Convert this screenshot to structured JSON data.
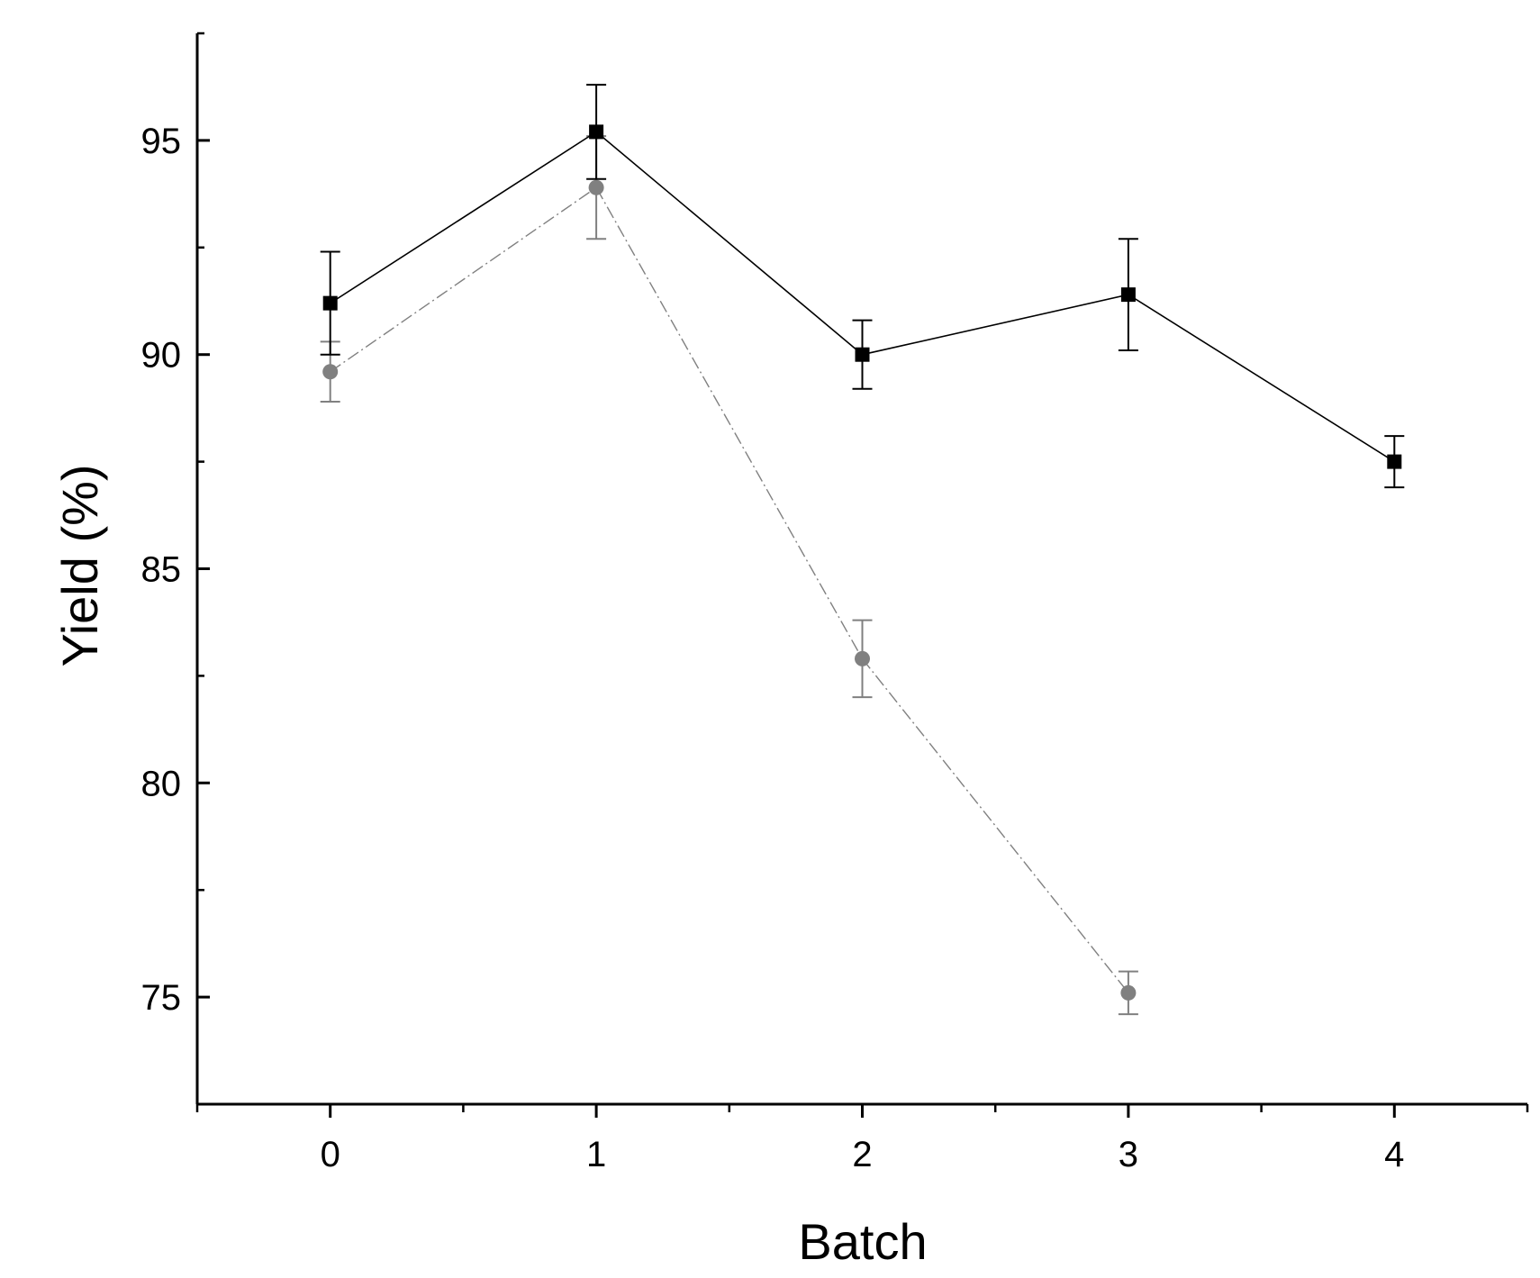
{
  "chart_data": {
    "type": "line",
    "title": "",
    "xlabel": "Batch",
    "ylabel": "Yield (%)",
    "xlim": [
      -0.5,
      4.5
    ],
    "ylim": [
      72.5,
      97.5
    ],
    "x_ticks": [
      0,
      1,
      2,
      3,
      4
    ],
    "x_tick_labels": [
      "0",
      "1",
      "2",
      "3",
      "4"
    ],
    "x_minor_ticks": [
      -0.5,
      0.5,
      1.5,
      2.5,
      3.5,
      4.5
    ],
    "y_ticks": [
      75,
      80,
      85,
      90,
      95
    ],
    "y_tick_labels": [
      "75",
      "80",
      "85",
      "90",
      "95"
    ],
    "y_minor_ticks": [
      72.5,
      77.5,
      82.5,
      87.5,
      92.5,
      97.5
    ],
    "grid": false,
    "legend": "none",
    "series": [
      {
        "marker": "square",
        "color": "#000000",
        "line_style": "solid",
        "x": [
          0,
          1,
          2,
          3,
          4
        ],
        "y": [
          91.2,
          95.2,
          90.0,
          91.4,
          87.5
        ],
        "error": [
          1.2,
          1.1,
          0.8,
          1.3,
          0.6
        ]
      },
      {
        "marker": "circle",
        "color": "#808080",
        "line_style": "dash-dot",
        "x": [
          0,
          1,
          2,
          3
        ],
        "y": [
          89.6,
          93.9,
          82.9,
          75.1
        ],
        "error": [
          0.7,
          1.2,
          0.9,
          0.5
        ]
      }
    ]
  }
}
